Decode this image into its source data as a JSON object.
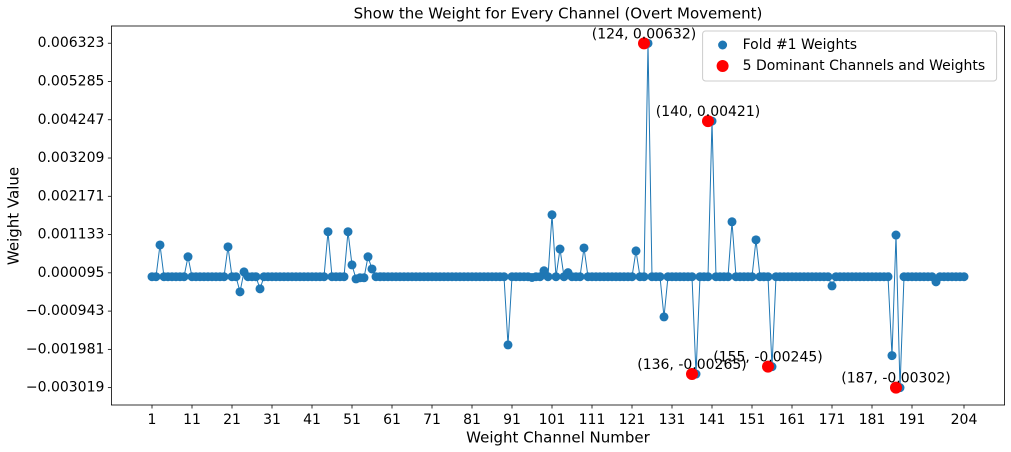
{
  "chart_data": {
    "type": "line",
    "title": "Show the Weight for Every Channel (Overt Movement)",
    "x_label": "Weight Channel Number",
    "y_label": "Weight Value",
    "x": [
      1,
      2,
      3,
      4,
      5,
      6,
      7,
      8,
      9,
      10,
      11,
      12,
      13,
      14,
      15,
      16,
      17,
      18,
      19,
      20,
      21,
      22,
      23,
      24,
      25,
      26,
      27,
      28,
      29,
      30,
      31,
      32,
      33,
      34,
      35,
      36,
      37,
      38,
      39,
      40,
      41,
      42,
      43,
      44,
      45,
      46,
      47,
      48,
      49,
      50,
      51,
      52,
      53,
      54,
      55,
      56,
      57,
      58,
      59,
      60,
      61,
      62,
      63,
      64,
      65,
      66,
      67,
      68,
      69,
      70,
      71,
      72,
      73,
      74,
      75,
      76,
      77,
      78,
      79,
      80,
      81,
      82,
      83,
      84,
      85,
      86,
      87,
      88,
      89,
      90,
      91,
      92,
      93,
      94,
      95,
      96,
      97,
      98,
      99,
      100,
      101,
      102,
      103,
      104,
      105,
      106,
      107,
      108,
      109,
      110,
      111,
      112,
      113,
      114,
      115,
      116,
      117,
      118,
      119,
      120,
      121,
      122,
      123,
      124,
      125,
      126,
      127,
      128,
      129,
      130,
      131,
      132,
      133,
      134,
      135,
      136,
      137,
      138,
      139,
      140,
      141,
      142,
      143,
      144,
      145,
      146,
      147,
      148,
      149,
      150,
      151,
      152,
      153,
      154,
      155,
      156,
      157,
      158,
      159,
      160,
      161,
      162,
      163,
      164,
      165,
      166,
      167,
      168,
      169,
      170,
      171,
      172,
      173,
      174,
      175,
      176,
      177,
      178,
      179,
      180,
      181,
      182,
      183,
      184,
      185,
      186,
      187,
      188,
      189,
      190,
      191,
      192,
      193,
      194,
      195,
      196,
      197,
      198,
      199,
      200,
      201,
      202,
      203,
      204
    ],
    "series": [
      {
        "name": "Fold #1 Weights",
        "color": "#1f77b4",
        "values": [
          -1e-05,
          -1e-05,
          0.00085,
          -1e-05,
          -1e-05,
          -1e-05,
          -1e-05,
          -1e-05,
          -1e-05,
          0.00053,
          -1e-05,
          -1e-05,
          -1e-05,
          -1e-05,
          -1e-05,
          -1e-05,
          -1e-05,
          -1e-05,
          -1e-05,
          0.0008,
          -1e-05,
          -1e-05,
          -0.00042,
          0.00012,
          -1e-05,
          -1e-05,
          -1e-05,
          -0.00034,
          -1e-05,
          -1e-05,
          -1e-05,
          -1e-05,
          -1e-05,
          -1e-05,
          -1e-05,
          -1e-05,
          -1e-05,
          -1e-05,
          -1e-05,
          -1e-05,
          -1e-05,
          -1e-05,
          -1e-05,
          -1e-05,
          0.00121,
          -1e-05,
          -1e-05,
          -1e-05,
          -1e-05,
          0.00121,
          0.00031,
          -7e-05,
          -4e-05,
          -4e-05,
          0.00053,
          0.0002,
          -1e-05,
          -1e-05,
          -1e-05,
          -1e-05,
          -1e-05,
          -1e-05,
          -1e-05,
          -1e-05,
          -1e-05,
          -1e-05,
          -1e-05,
          -1e-05,
          -1e-05,
          -1e-05,
          -1e-05,
          -1e-05,
          -1e-05,
          -1e-05,
          -1e-05,
          -1e-05,
          -1e-05,
          -1e-05,
          -1e-05,
          -1e-05,
          -1e-05,
          -1e-05,
          -1e-05,
          -1e-05,
          -1e-05,
          -1e-05,
          -1e-05,
          -1e-05,
          -1e-05,
          -0.00186,
          -1e-05,
          -1e-05,
          -1e-05,
          -1e-05,
          -1e-05,
          -3e-05,
          -1e-05,
          -1e-05,
          0.00015,
          -1e-05,
          0.00167,
          -1e-05,
          0.00074,
          -1e-05,
          0.0001,
          -1e-05,
          -1e-05,
          -1e-05,
          0.00077,
          -1e-05,
          -1e-05,
          -1e-05,
          -1e-05,
          -1e-05,
          -1e-05,
          -1e-05,
          -1e-05,
          -1e-05,
          -1e-05,
          -1e-05,
          -1e-05,
          0.00069,
          -1e-05,
          -1e-05,
          0.00632,
          -1e-05,
          -1e-05,
          -1e-05,
          -0.0011,
          -1e-05,
          -1e-05,
          -1e-05,
          -1e-05,
          -1e-05,
          -1e-05,
          -1e-05,
          -0.00265,
          -1e-05,
          -1e-05,
          -1e-05,
          0.00421,
          -1e-05,
          -1e-05,
          -1e-05,
          -1e-05,
          0.00148,
          -1e-05,
          -1e-05,
          -1e-05,
          -1e-05,
          -1e-05,
          0.00099,
          -1e-05,
          -1e-05,
          -1e-05,
          -0.00245,
          -1e-05,
          -1e-05,
          -1e-05,
          -1e-05,
          -1e-05,
          -1e-05,
          -1e-05,
          -1e-05,
          -1e-05,
          -1e-05,
          -1e-05,
          -1e-05,
          -1e-05,
          -1e-05,
          -0.00026,
          -1e-05,
          -1e-05,
          -1e-05,
          -1e-05,
          -1e-05,
          -1e-05,
          -1e-05,
          -1e-05,
          -1e-05,
          -1e-05,
          -1e-05,
          -1e-05,
          -1e-05,
          -1e-05,
          -0.00215,
          0.00112,
          -0.00302,
          -1e-05,
          -1e-05,
          -1e-05,
          -1e-05,
          -1e-05,
          -1e-05,
          -1e-05,
          -1e-05,
          -0.00015,
          -1e-05,
          -1e-05,
          -1e-05,
          -1e-05,
          -1e-05,
          -1e-05,
          -1e-05
        ]
      },
      {
        "name": "5 Dominant Channels and Weights",
        "color": "#ff0000",
        "type": "scatter",
        "x": [
          124,
          140,
          136,
          155,
          187
        ],
        "values": [
          0.00632,
          0.00421,
          -0.00265,
          -0.00245,
          -0.00302
        ],
        "annotations": [
          "(124, 0.00632)",
          "(140, 0.00421)",
          "(136, -0.00265)",
          "(155, -0.00245)",
          "(187, -0.00302)"
        ]
      }
    ],
    "xlim": [
      -9.15,
      214.15
    ],
    "xticks": [
      1,
      11,
      21,
      31,
      41,
      51,
      61,
      71,
      81,
      91,
      101,
      111,
      121,
      131,
      141,
      151,
      161,
      171,
      181,
      191,
      204
    ],
    "ylim": [
      -0.00349,
      0.00679
    ],
    "yticks": [
      {
        "value": -0.003019,
        "label": "−0.003019"
      },
      {
        "value": -0.001981,
        "label": "−0.001981"
      },
      {
        "value": -0.000943,
        "label": "−0.000943"
      },
      9.5e-05,
      0.001133,
      0.002171,
      0.003209,
      0.004247,
      0.005285,
      0.006323
    ],
    "grid": false,
    "legend": "upper right"
  }
}
